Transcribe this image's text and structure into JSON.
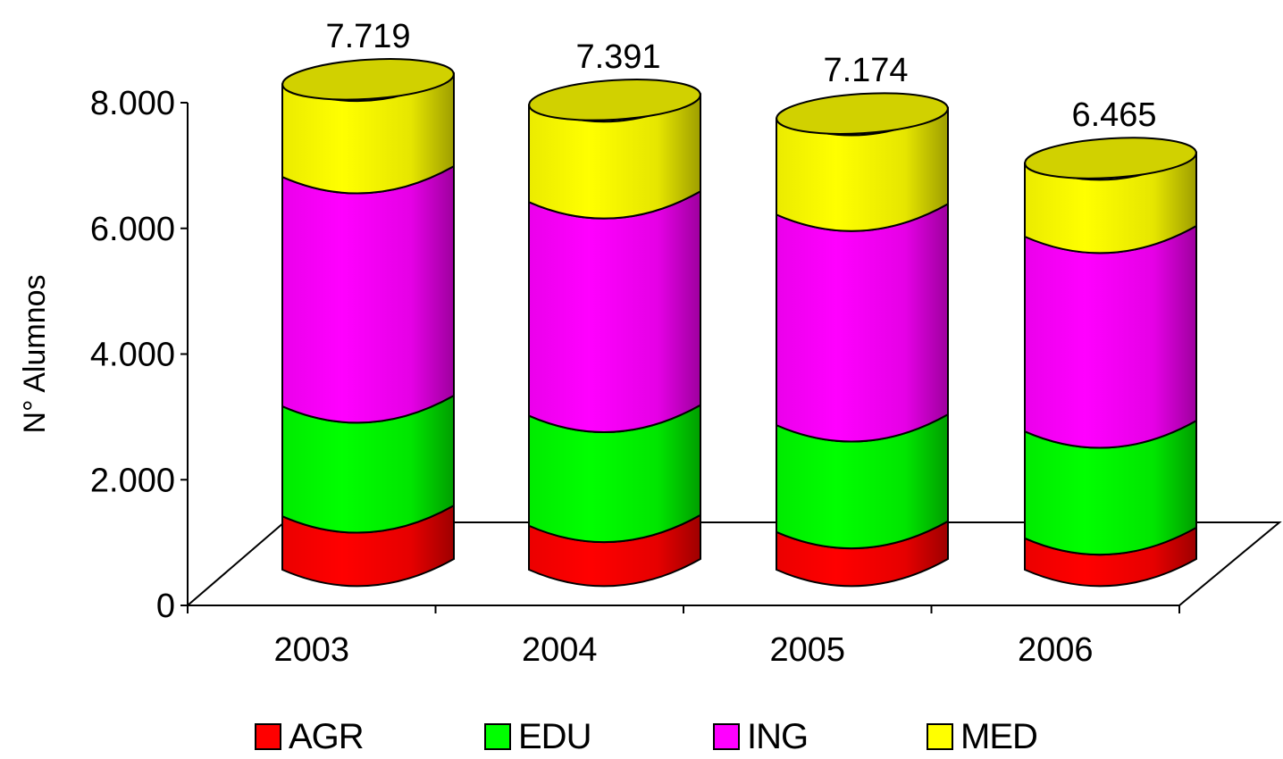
{
  "chart_data": {
    "type": "bar",
    "style": "3d-stacked-cylinder",
    "ylabel": "N° Alumnos",
    "ylim": [
      0,
      8000
    ],
    "yticks": [
      0,
      2000,
      4000,
      6000,
      8000
    ],
    "ytick_labels": [
      "0",
      "2.000",
      "4.000",
      "6.000",
      "8.000"
    ],
    "categories": [
      "2003",
      "2004",
      "2005",
      "2006"
    ],
    "totals": [
      7719,
      7391,
      7174,
      6465
    ],
    "total_labels": [
      "7.719",
      "7.391",
      "7.174",
      "6.465"
    ],
    "series": [
      {
        "name": "AGR",
        "color": "#ff0000",
        "values": [
          850,
          700,
          600,
          500
        ]
      },
      {
        "name": "EDU",
        "color": "#00ff00",
        "values": [
          1750,
          1750,
          1700,
          1700
        ]
      },
      {
        "name": "ING",
        "color": "#ff00ff",
        "values": [
          3650,
          3400,
          3350,
          3100
        ]
      },
      {
        "name": "MED",
        "color": "#ffff00",
        "values": [
          1469,
          1541,
          1524,
          1165
        ]
      }
    ],
    "legend_position": "bottom",
    "grid": false
  }
}
